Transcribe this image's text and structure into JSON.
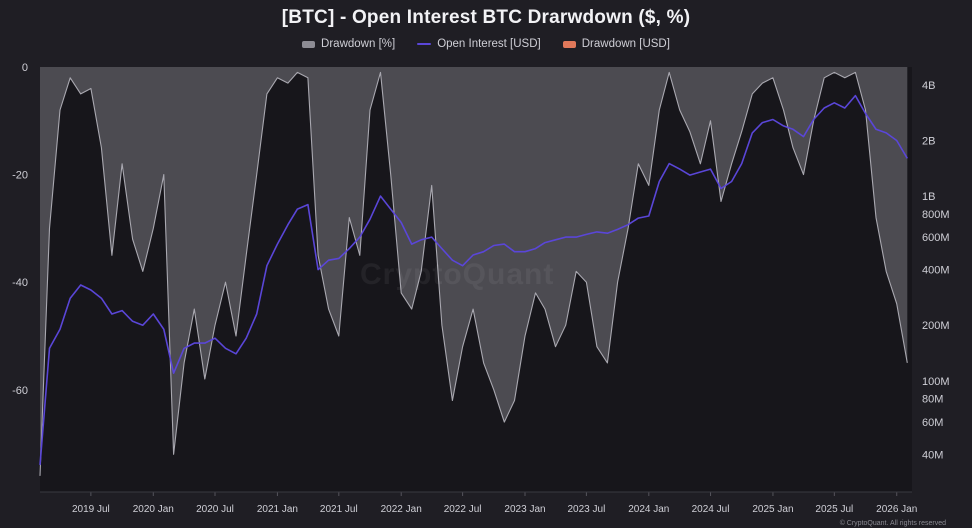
{
  "chart_data": {
    "type": "area",
    "title": "[BTC] - Open Interest BTC Drarwdown ($, %)",
    "watermark": "CryptoQuant",
    "footer": "© CryptoQuant. All rights reserved",
    "legend_position": "top-center",
    "colors": {
      "drawdown_pct": "#8d8c94",
      "open_interest": "#5a46d8",
      "drawdown_usd": "#e0785a",
      "background": "#1f1e24",
      "plot_bg": "#17161b"
    },
    "legend": [
      {
        "name": "Drawdown [%]",
        "color": "#8d8c94",
        "swatch": "box"
      },
      {
        "name": "Open Interest [USD]",
        "color": "#5a46d8",
        "swatch": "line"
      },
      {
        "name": "Drawdown [USD]",
        "color": "#e0785a",
        "swatch": "box"
      }
    ],
    "x_axis": {
      "range": [
        "2019-02-01",
        "2026-02-15"
      ],
      "ticks": [
        "2019 Jul",
        "2020 Jan",
        "2020 Jul",
        "2021 Jan",
        "2021 Jul",
        "2022 Jan",
        "2022 Jul",
        "2023 Jan",
        "2023 Jul",
        "2024 Jan",
        "2024 Jul",
        "2025 Jan",
        "2025 Jul",
        "2026 Jan"
      ],
      "tick_dates": [
        "2019-07-01",
        "2020-01-01",
        "2020-07-01",
        "2021-01-01",
        "2021-07-01",
        "2022-01-01",
        "2022-07-01",
        "2023-01-01",
        "2023-07-01",
        "2024-01-01",
        "2024-07-01",
        "2025-01-01",
        "2025-07-01",
        "2026-01-01"
      ]
    },
    "y_left": {
      "label": "",
      "range": [
        -79,
        0
      ],
      "ticks": [
        0,
        -20,
        -40,
        -60
      ],
      "tick_labels": [
        "0",
        "-20",
        "-40",
        "-60"
      ]
    },
    "y_right": {
      "label": "",
      "scale": "log",
      "range_usd": [
        25000000,
        5000000000
      ],
      "ticks": [
        4000000000,
        2000000000,
        1000000000,
        800000000,
        600000000,
        400000000,
        200000000,
        100000000,
        80000000,
        60000000,
        40000000
      ],
      "tick_labels": [
        "4B",
        "2B",
        "1B",
        "800M",
        "600M",
        "400M",
        "200M",
        "100M",
        "80M",
        "60M",
        "40M"
      ]
    },
    "series": [
      {
        "name": "Drawdown [%]",
        "type": "area",
        "axis": "left",
        "unit": "%",
        "x": [
          "2019-02-01",
          "2019-03-01",
          "2019-04-01",
          "2019-05-01",
          "2019-06-01",
          "2019-07-01",
          "2019-08-01",
          "2019-09-01",
          "2019-10-01",
          "2019-11-01",
          "2019-12-01",
          "2020-01-01",
          "2020-02-01",
          "2020-03-01",
          "2020-04-01",
          "2020-05-01",
          "2020-06-01",
          "2020-07-01",
          "2020-08-01",
          "2020-09-01",
          "2020-10-01",
          "2020-11-01",
          "2020-12-01",
          "2021-01-01",
          "2021-02-01",
          "2021-03-01",
          "2021-04-01",
          "2021-05-01",
          "2021-06-01",
          "2021-07-01",
          "2021-08-01",
          "2021-09-01",
          "2021-10-01",
          "2021-11-01",
          "2021-12-01",
          "2022-01-01",
          "2022-02-01",
          "2022-03-01",
          "2022-04-01",
          "2022-05-01",
          "2022-06-01",
          "2022-07-01",
          "2022-08-01",
          "2022-09-01",
          "2022-10-01",
          "2022-11-01",
          "2022-12-01",
          "2023-01-01",
          "2023-02-01",
          "2023-03-01",
          "2023-04-01",
          "2023-05-01",
          "2023-06-01",
          "2023-07-01",
          "2023-08-01",
          "2023-09-01",
          "2023-10-01",
          "2023-11-01",
          "2023-12-01",
          "2024-01-01",
          "2024-02-01",
          "2024-03-01",
          "2024-04-01",
          "2024-05-01",
          "2024-06-01",
          "2024-07-01",
          "2024-08-01",
          "2024-09-01",
          "2024-10-01",
          "2024-11-01",
          "2024-12-01",
          "2025-01-01",
          "2025-02-01",
          "2025-03-01",
          "2025-04-01",
          "2025-05-01",
          "2025-06-01",
          "2025-07-01",
          "2025-08-01",
          "2025-09-01",
          "2025-10-01",
          "2025-11-01",
          "2025-12-01",
          "2026-01-01",
          "2026-02-01"
        ],
        "values": [
          -76,
          -30,
          -8,
          -2,
          -5,
          -4,
          -15,
          -35,
          -18,
          -32,
          -38,
          -30,
          -20,
          -72,
          -55,
          -45,
          -58,
          -48,
          -40,
          -50,
          -35,
          -20,
          -5,
          -2,
          -3,
          -1,
          -2,
          -35,
          -45,
          -50,
          -28,
          -35,
          -8,
          -1,
          -20,
          -42,
          -45,
          -38,
          -22,
          -48,
          -62,
          -52,
          -45,
          -55,
          -60,
          -66,
          -62,
          -50,
          -42,
          -45,
          -52,
          -48,
          -38,
          -40,
          -52,
          -55,
          -40,
          -30,
          -18,
          -22,
          -8,
          -1,
          -8,
          -12,
          -18,
          -10,
          -25,
          -18,
          -12,
          -5,
          -3,
          -2,
          -8,
          -15,
          -20,
          -10,
          -2,
          -1,
          -2,
          -1,
          -8,
          -28,
          -38,
          -44,
          -55
        ]
      },
      {
        "name": "Open Interest [USD]",
        "type": "line",
        "axis": "right",
        "unit": "USD",
        "x": [
          "2019-02-01",
          "2019-03-01",
          "2019-04-01",
          "2019-05-01",
          "2019-06-01",
          "2019-07-01",
          "2019-08-01",
          "2019-09-01",
          "2019-10-01",
          "2019-11-01",
          "2019-12-01",
          "2020-01-01",
          "2020-02-01",
          "2020-03-01",
          "2020-04-01",
          "2020-05-01",
          "2020-06-01",
          "2020-07-01",
          "2020-08-01",
          "2020-09-01",
          "2020-10-01",
          "2020-11-01",
          "2020-12-01",
          "2021-01-01",
          "2021-02-01",
          "2021-03-01",
          "2021-04-01",
          "2021-05-01",
          "2021-06-01",
          "2021-07-01",
          "2021-08-01",
          "2021-09-01",
          "2021-10-01",
          "2021-11-01",
          "2021-12-01",
          "2022-01-01",
          "2022-02-01",
          "2022-03-01",
          "2022-04-01",
          "2022-05-01",
          "2022-06-01",
          "2022-07-01",
          "2022-08-01",
          "2022-09-01",
          "2022-10-01",
          "2022-11-01",
          "2022-12-01",
          "2023-01-01",
          "2023-02-01",
          "2023-03-01",
          "2023-04-01",
          "2023-05-01",
          "2023-06-01",
          "2023-07-01",
          "2023-08-01",
          "2023-09-01",
          "2023-10-01",
          "2023-11-01",
          "2023-12-01",
          "2024-01-01",
          "2024-02-01",
          "2024-03-01",
          "2024-04-01",
          "2024-05-01",
          "2024-06-01",
          "2024-07-01",
          "2024-08-01",
          "2024-09-01",
          "2024-10-01",
          "2024-11-01",
          "2024-12-01",
          "2025-01-01",
          "2025-02-01",
          "2025-03-01",
          "2025-04-01",
          "2025-05-01",
          "2025-06-01",
          "2025-07-01",
          "2025-08-01",
          "2025-09-01",
          "2025-10-01",
          "2025-11-01",
          "2025-12-01",
          "2026-01-01",
          "2026-02-01"
        ],
        "values": [
          35000000,
          150000000,
          190000000,
          280000000,
          330000000,
          310000000,
          280000000,
          230000000,
          240000000,
          210000000,
          200000000,
          230000000,
          190000000,
          110000000,
          150000000,
          160000000,
          160000000,
          170000000,
          150000000,
          140000000,
          170000000,
          230000000,
          420000000,
          550000000,
          700000000,
          850000000,
          900000000,
          400000000,
          450000000,
          460000000,
          520000000,
          600000000,
          750000000,
          1000000000,
          850000000,
          720000000,
          550000000,
          580000000,
          600000000,
          520000000,
          450000000,
          420000000,
          480000000,
          500000000,
          540000000,
          550000000,
          500000000,
          500000000,
          520000000,
          560000000,
          580000000,
          600000000,
          600000000,
          620000000,
          640000000,
          630000000,
          660000000,
          700000000,
          760000000,
          780000000,
          1200000000,
          1500000000,
          1400000000,
          1300000000,
          1350000000,
          1400000000,
          1100000000,
          1200000000,
          1500000000,
          2200000000,
          2500000000,
          2600000000,
          2400000000,
          2300000000,
          2100000000,
          2600000000,
          3000000000,
          3200000000,
          3000000000,
          3500000000,
          2800000000,
          2300000000,
          2200000000,
          2000000000,
          1600000000
        ]
      },
      {
        "name": "Drawdown [USD]",
        "type": "line",
        "axis": "right",
        "unit": "USD",
        "x": [],
        "values": []
      }
    ]
  }
}
